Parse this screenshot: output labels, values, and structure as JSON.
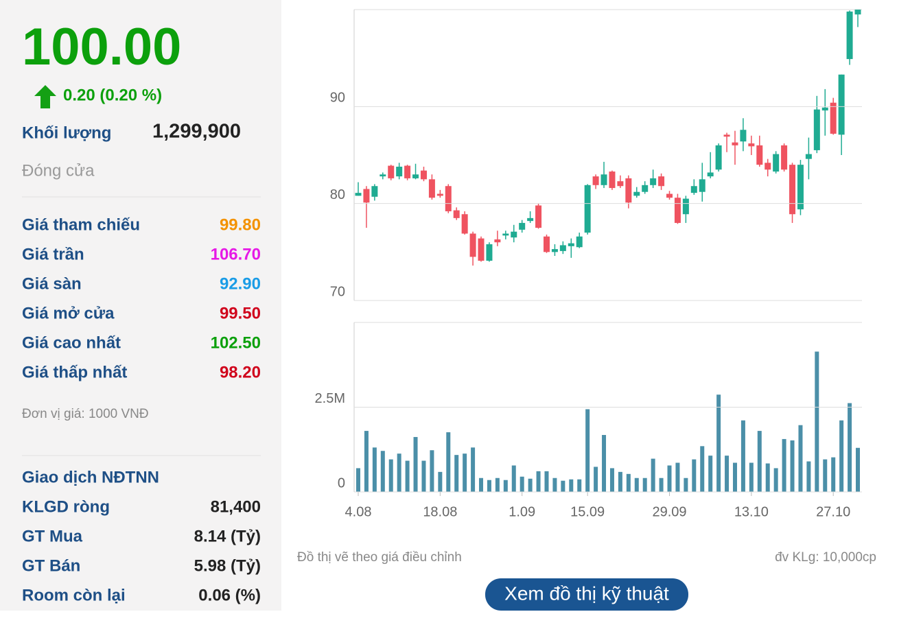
{
  "summary": {
    "price": "100.00",
    "change": "0.20 (0.20 %)",
    "volume_label": "Khối lượng",
    "volume": "1,299,900",
    "status": "Đóng cửa"
  },
  "prices": [
    {
      "label": "Giá tham chiếu",
      "value": "99.80"
    },
    {
      "label": "Giá trần",
      "value": "106.70"
    },
    {
      "label": "Giá sàn",
      "value": "92.90"
    },
    {
      "label": "Giá mở cửa",
      "value": "99.50"
    },
    {
      "label": "Giá cao nhất",
      "value": "102.50"
    },
    {
      "label": "Giá thấp nhất",
      "value": "98.20"
    }
  ],
  "unit_note": "Đơn vị giá: 1000 VNĐ",
  "foreign": {
    "title": "Giao dịch NĐTNN",
    "rows": [
      {
        "label": "KLGD ròng",
        "value": "81,400"
      },
      {
        "label": "GT Mua",
        "value": "8.14 (Tỷ)"
      },
      {
        "label": "GT Bán",
        "value": "5.98 (Tỷ)"
      },
      {
        "label": "Room còn lại",
        "value": "0.06 (%)"
      }
    ]
  },
  "chart_data": [
    {
      "type": "candlestick",
      "up_color": "#1fab92",
      "down_color": "#ef5360",
      "ylim": [
        70,
        100
      ],
      "yticks": [
        70,
        80,
        90
      ],
      "grid": true,
      "open": [
        80.8,
        81.5,
        80.7,
        82.8,
        83.9,
        82.8,
        83.9,
        82.6,
        83.4,
        82.5,
        81.0,
        81.8,
        79.3,
        78.9,
        76.9,
        76.4,
        74.1,
        76.3,
        76.7,
        76.5,
        77.3,
        78.2,
        79.8,
        76.6,
        75.0,
        75.1,
        75.6,
        75.5,
        77.0,
        82.8,
        81.9,
        83.3,
        82.3,
        82.6,
        80.8,
        81.2,
        81.9,
        82.8,
        81.0,
        80.6,
        78.9,
        81.1,
        81.2,
        82.8,
        83.5,
        87.1,
        86.3,
        86.4,
        86.2,
        86.0,
        84.2,
        83.3,
        86.0,
        84.0,
        79.4,
        84.6,
        85.5,
        89.6,
        90.4,
        87.1,
        94.9,
        99.5
      ],
      "high": [
        82.2,
        81.8,
        82.0,
        83.2,
        84.0,
        84.2,
        84.0,
        84.1,
        83.8,
        83.0,
        81.4,
        82.0,
        79.6,
        79.2,
        77.1,
        76.6,
        76.0,
        77.2,
        77.2,
        77.8,
        78.3,
        79.2,
        80.0,
        76.8,
        75.8,
        76.1,
        76.4,
        77.0,
        82.0,
        83.0,
        84.3,
        83.4,
        82.9,
        82.9,
        81.7,
        82.3,
        83.5,
        83.1,
        81.3,
        81.0,
        80.8,
        82.5,
        84.2,
        85.3,
        86.2,
        87.3,
        87.5,
        88.8,
        87.0,
        87.0,
        84.6,
        85.4,
        86.2,
        84.2,
        84.5,
        86.8,
        91.1,
        91.8,
        90.9,
        93.3,
        99.9,
        102.5
      ],
      "low": [
        80.8,
        77.5,
        80.3,
        82.5,
        82.4,
        82.5,
        82.4,
        82.5,
        82.3,
        80.4,
        80.6,
        79.0,
        78.3,
        76.8,
        73.6,
        74.0,
        74.0,
        75.6,
        76.3,
        76.0,
        77.0,
        78.0,
        77.4,
        74.9,
        74.6,
        74.8,
        74.4,
        75.4,
        76.8,
        81.5,
        81.6,
        81.4,
        81.6,
        79.5,
        80.6,
        81.0,
        81.6,
        81.4,
        80.4,
        77.9,
        78.0,
        80.9,
        80.2,
        82.6,
        83.3,
        85.3,
        84.0,
        85.4,
        85.0,
        83.8,
        82.8,
        83.1,
        83.3,
        78.0,
        78.8,
        82.5,
        85.2,
        87.0,
        87.1,
        85.0,
        94.3,
        98.2
      ],
      "close": [
        81.1,
        80.1,
        81.8,
        83.0,
        82.6,
        83.8,
        82.6,
        83.0,
        82.5,
        80.6,
        80.8,
        79.2,
        78.5,
        76.9,
        74.5,
        74.1,
        75.8,
        76.0,
        76.9,
        77.1,
        78.0,
        78.5,
        77.5,
        75.0,
        75.3,
        75.7,
        75.9,
        76.6,
        81.9,
        81.9,
        83.0,
        81.6,
        81.8,
        80.1,
        81.2,
        81.9,
        82.6,
        81.8,
        80.6,
        78.0,
        80.5,
        81.8,
        82.5,
        83.2,
        86.0,
        86.9,
        86.0,
        87.6,
        85.9,
        84.0,
        83.5,
        85.1,
        83.5,
        78.9,
        84.0,
        85.1,
        89.7,
        89.9,
        87.2,
        93.3,
        99.8,
        100.0
      ]
    },
    {
      "type": "bar",
      "color": "#4b8fa8",
      "categories": [
        "4.08",
        null,
        null,
        null,
        null,
        null,
        null,
        null,
        null,
        null,
        "18.08",
        null,
        null,
        null,
        null,
        null,
        null,
        null,
        null,
        null,
        "1.09",
        null,
        null,
        null,
        null,
        null,
        null,
        null,
        "15.09",
        null,
        null,
        null,
        null,
        null,
        null,
        null,
        null,
        null,
        "29.09",
        null,
        null,
        null,
        null,
        null,
        null,
        null,
        null,
        null,
        "13.10",
        null,
        null,
        null,
        null,
        null,
        null,
        null,
        null,
        null,
        "27.10",
        null,
        null,
        null
      ],
      "values": [
        700000,
        1800000,
        1310000,
        1210000,
        960000,
        1130000,
        920000,
        1620000,
        920000,
        1230000,
        590000,
        1760000,
        1090000,
        1130000,
        1310000,
        410000,
        350000,
        410000,
        350000,
        780000,
        450000,
        390000,
        610000,
        610000,
        410000,
        330000,
        370000,
        370000,
        2440000,
        740000,
        1680000,
        700000,
        590000,
        530000,
        410000,
        410000,
        980000,
        410000,
        780000,
        860000,
        410000,
        960000,
        1350000,
        1070000,
        2870000,
        1070000,
        860000,
        2110000,
        860000,
        1800000,
        840000,
        700000,
        1560000,
        1520000,
        1970000,
        900000,
        4140000,
        960000,
        1020000,
        2110000,
        2620000,
        1299900
      ],
      "ylim": [
        0,
        5000000
      ],
      "yticks": [
        0,
        {
          "value": 2500000,
          "label": "2.5M"
        }
      ],
      "grid": true
    }
  ],
  "chart_note": "Đồ thị vẽ theo giá điều chỉnh",
  "volume_unit": "đv KLg: 10,000cp",
  "button": "Xem đồ thị kỹ thuật"
}
